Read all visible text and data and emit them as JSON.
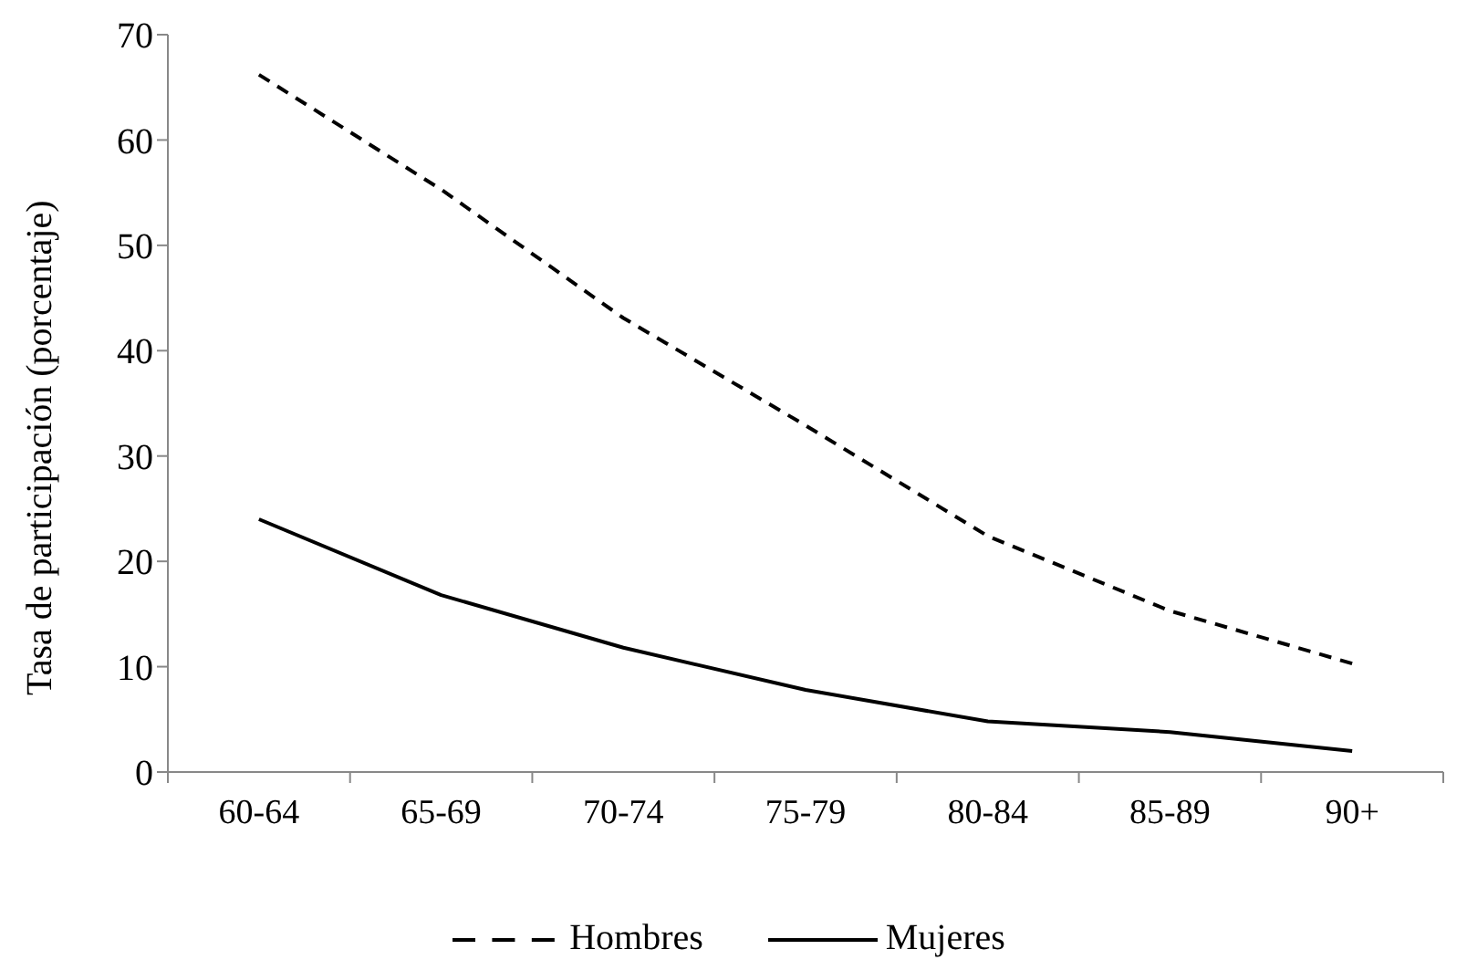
{
  "chart_data": {
    "type": "line",
    "ylabel": "Tasa de participación (porcentaje)",
    "categories": [
      "60-64",
      "65-69",
      "70-74",
      "75-79",
      "80-84",
      "85-89",
      "90+"
    ],
    "series": [
      {
        "name": "Hombres",
        "color": "#000000",
        "line_style": "dashed",
        "values": [
          66.2,
          55.3,
          43.1,
          32.9,
          22.4,
          15.3,
          10.3
        ]
      },
      {
        "name": "Mujeres",
        "color": "#000000",
        "line_style": "solid",
        "values": [
          24.0,
          16.8,
          11.8,
          7.8,
          4.8,
          3.8,
          2.0
        ]
      }
    ],
    "ylim": [
      0,
      70
    ],
    "yticks": [
      0,
      10,
      20,
      30,
      40,
      50,
      60,
      70
    ],
    "grid": false,
    "legend": "bottom",
    "marker": "none"
  }
}
